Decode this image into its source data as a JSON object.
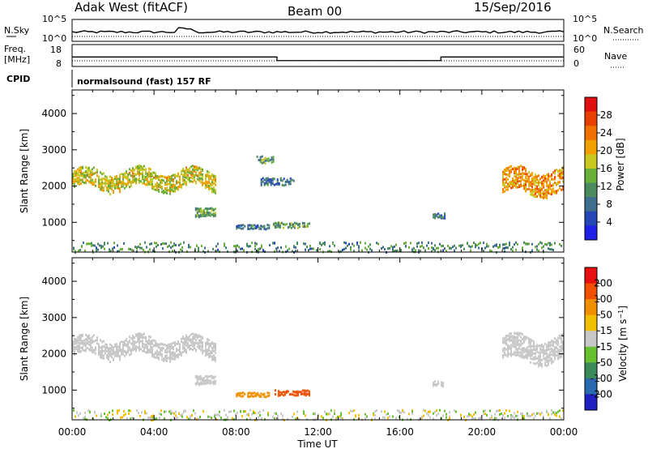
{
  "header": {
    "station": "Adak West (fitACF)",
    "beam": "Beam 00",
    "date": "15/Sep/2016"
  },
  "top_panel": {
    "left_label": "N.Sky",
    "right_label": "N.Search",
    "left_ticks": [
      "10^5",
      "10^0"
    ],
    "right_ticks": [
      "10^5",
      "10^0"
    ]
  },
  "freq_panel": {
    "left_label_line1": "Freq.",
    "left_label_line2": "[MHz]",
    "right_label": "Nave",
    "left_ticks": [
      "18",
      "8"
    ],
    "right_ticks": [
      "60",
      "0"
    ],
    "cpid_label": "CPID",
    "program": "normalsound (fast) 157 RF"
  },
  "power_panel": {
    "ylabel": "Slant Range [km]",
    "yticks": [
      "4000",
      "3000",
      "2000",
      "1000"
    ],
    "colorbar_label": "Power [dB]",
    "colorbar_ticks": [
      "28",
      "24",
      "20",
      "16",
      "12",
      "8",
      "4"
    ],
    "colors": [
      "#1f1fe6",
      "#2546b4",
      "#3e6e8c",
      "#4a8a5e",
      "#6cb03c",
      "#c8c820",
      "#f0a000",
      "#f07000",
      "#e84000",
      "#e01010"
    ]
  },
  "velocity_panel": {
    "ylabel": "Slant Range [km]",
    "yticks": [
      "4000",
      "3000",
      "2000",
      "1000"
    ],
    "colorbar_label": "Velocity [m s^-1]",
    "colorbar_ticks": [
      "200",
      "100",
      "50",
      "15",
      "-15",
      "-50",
      "-100",
      "-200"
    ],
    "colors": [
      "#2020c0",
      "#2a6ab0",
      "#3a8a5a",
      "#66c030",
      "#c8c8c8",
      "#f0c000",
      "#f09000",
      "#f05000",
      "#e81010"
    ]
  },
  "xaxis": {
    "label": "Time UT",
    "ticks": [
      "00:00",
      "04:00",
      "08:00",
      "12:00",
      "16:00",
      "20:00",
      "00:00"
    ]
  },
  "chart_data": {
    "type": "heatmap",
    "title": "Adak West (fitACF) Beam 00 15/Sep/2016",
    "xlabel": "Time UT",
    "ylabel": "Slant Range [km]",
    "xlim_hours": [
      0,
      24
    ],
    "ylim_km": [
      180,
      4650
    ],
    "frequency_schedule_mhz": [
      {
        "start_hour": 0,
        "end_hour": 10,
        "freq": 12.4
      },
      {
        "start_hour": 10,
        "end_hour": 18,
        "freq": 10.4
      },
      {
        "start_hour": 18,
        "end_hour": 24,
        "freq": 12.4
      }
    ],
    "power_scatter_regions": [
      {
        "start_hour": 0.0,
        "end_hour": 7.0,
        "range_center_km": 2200,
        "range_width_km": 500,
        "power_db": 18
      },
      {
        "start_hour": 6.0,
        "end_hour": 7.0,
        "range_center_km": 1300,
        "range_width_km": 250,
        "power_db": 12
      },
      {
        "start_hour": 8.0,
        "end_hour": 9.6,
        "range_center_km": 900,
        "range_width_km": 120,
        "power_db": 8
      },
      {
        "start_hour": 9.0,
        "end_hour": 9.8,
        "range_center_km": 2750,
        "range_width_km": 200,
        "power_db": 12
      },
      {
        "start_hour": 9.2,
        "end_hour": 10.8,
        "range_center_km": 2150,
        "range_width_km": 200,
        "power_db": 8
      },
      {
        "start_hour": 9.8,
        "end_hour": 11.6,
        "range_center_km": 950,
        "range_width_km": 150,
        "power_db": 12
      },
      {
        "start_hour": 17.6,
        "end_hour": 18.2,
        "range_center_km": 1200,
        "range_width_km": 150,
        "power_db": 8
      },
      {
        "start_hour": 21.0,
        "end_hour": 24.0,
        "range_center_km": 2150,
        "range_width_km": 650,
        "power_db": 22
      }
    ],
    "velocity_scatter_regions": [
      {
        "start_hour": 0.0,
        "end_hour": 7.0,
        "range_center_km": 2200,
        "range_width_km": 500,
        "velocity_ms": 0
      },
      {
        "start_hour": 6.0,
        "end_hour": 7.0,
        "range_center_km": 1300,
        "range_width_km": 250,
        "velocity_ms": 0
      },
      {
        "start_hour": 8.0,
        "end_hour": 9.6,
        "range_center_km": 900,
        "range_width_km": 120,
        "velocity_ms": -60
      },
      {
        "start_hour": 9.8,
        "end_hour": 11.6,
        "range_center_km": 950,
        "range_width_km": 150,
        "velocity_ms": -110
      },
      {
        "start_hour": 17.6,
        "end_hour": 18.2,
        "range_center_km": 1200,
        "range_width_km": 150,
        "velocity_ms": 0
      },
      {
        "start_hour": 21.0,
        "end_hour": 24.0,
        "range_center_km": 2150,
        "range_width_km": 650,
        "velocity_ms": 0
      }
    ]
  }
}
